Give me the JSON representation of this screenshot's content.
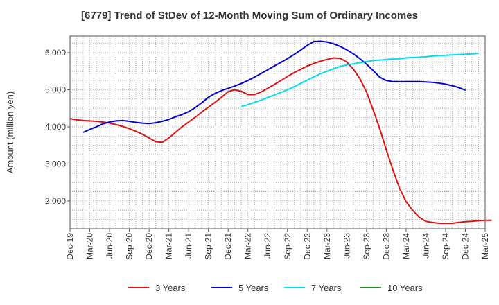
{
  "chart_data": {
    "type": "line",
    "title": "[6779]  Trend of StDev of 12-Month Moving Sum of Ordinary Incomes",
    "xlabel": "",
    "ylabel": "Amount (million yen)",
    "ylim": [
      1250,
      6450
    ],
    "y_ticks": [
      2000,
      3000,
      4000,
      5000,
      6000
    ],
    "y_tick_labels": [
      "2,000",
      "3,000",
      "4,000",
      "5,000",
      "6,000"
    ],
    "x_tick_labels": [
      "Dec-19",
      "Mar-20",
      "Jun-20",
      "Sep-20",
      "Dec-20",
      "Mar-21",
      "Jun-21",
      "Sep-21",
      "Dec-21",
      "Mar-22",
      "Jun-22",
      "Sep-22",
      "Dec-22",
      "Mar-23",
      "Jun-23",
      "Sep-23",
      "Dec-23",
      "Mar-24",
      "Jun-24",
      "Sep-24",
      "Dec-24",
      "Mar-25"
    ],
    "x_range_months": [
      0,
      63
    ],
    "grid": true,
    "legend_position": "bottom",
    "series": [
      {
        "name": "3 Years",
        "color": "#dd1111",
        "start_month": 0,
        "values": [
          4220,
          4190,
          4170,
          4160,
          4150,
          4130,
          4100,
          4060,
          4010,
          3950,
          3880,
          3800,
          3700,
          3600,
          3580,
          3700,
          3850,
          4000,
          4130,
          4260,
          4400,
          4530,
          4660,
          4800,
          4950,
          5000,
          4960,
          4870,
          4870,
          4940,
          5040,
          5140,
          5250,
          5360,
          5460,
          5550,
          5640,
          5710,
          5770,
          5820,
          5860,
          5850,
          5750,
          5560,
          5300,
          4940,
          4460,
          3950,
          3380,
          2840,
          2350,
          1980,
          1750,
          1560,
          1450,
          1420,
          1400,
          1400,
          1400,
          1420,
          1440,
          1450,
          1470,
          1480,
          1480
        ]
      },
      {
        "name": "5 Years",
        "color": "#0000cc",
        "start_month": 2,
        "values": [
          3850,
          3930,
          4000,
          4080,
          4130,
          4160,
          4170,
          4150,
          4120,
          4100,
          4090,
          4110,
          4150,
          4200,
          4270,
          4330,
          4410,
          4520,
          4650,
          4800,
          4900,
          4980,
          5040,
          5100,
          5170,
          5250,
          5340,
          5440,
          5540,
          5640,
          5740,
          5840,
          5950,
          6070,
          6200,
          6300,
          6310,
          6290,
          6240,
          6170,
          6080,
          5970,
          5840,
          5690,
          5520,
          5340,
          5250,
          5220,
          5220,
          5220,
          5220,
          5220,
          5210,
          5200,
          5180,
          5150,
          5110,
          5060,
          4990
        ]
      },
      {
        "name": "7 Years",
        "color": "#00ddee",
        "start_month": 26,
        "values": [
          4550,
          4600,
          4660,
          4720,
          4790,
          4860,
          4930,
          5000,
          5080,
          5170,
          5260,
          5350,
          5430,
          5500,
          5570,
          5630,
          5670,
          5700,
          5730,
          5760,
          5790,
          5800,
          5820,
          5830,
          5840,
          5860,
          5870,
          5880,
          5890,
          5910,
          5920,
          5930,
          5940,
          5950,
          5960,
          5970,
          5980
        ]
      },
      {
        "name": "10 Years",
        "color": "#228b22",
        "start_month": 0,
        "values": []
      }
    ]
  }
}
